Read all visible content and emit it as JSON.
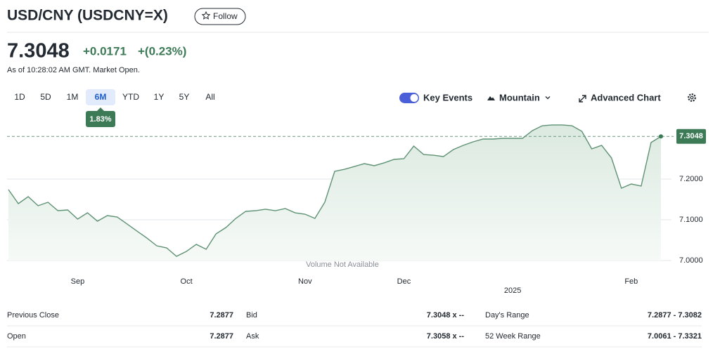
{
  "header": {
    "title": "USD/CNY (USDCNY=X)",
    "follow": "Follow"
  },
  "quote": {
    "price": "7.3048",
    "change": "+0.0171",
    "change_pct": "+(0.23%)",
    "as_of": "As of 10:28:02 AM GMT. Market Open."
  },
  "ranges": [
    {
      "label": "1D",
      "selected": false
    },
    {
      "label": "5D",
      "selected": false
    },
    {
      "label": "1M",
      "selected": false
    },
    {
      "label": "6M",
      "selected": true
    },
    {
      "label": "YTD",
      "selected": false
    },
    {
      "label": "1Y",
      "selected": false
    },
    {
      "label": "5Y",
      "selected": false
    },
    {
      "label": "All",
      "selected": false
    }
  ],
  "range_change": "1.83%",
  "controls": {
    "key_events": "Key Events",
    "mountain": "Mountain",
    "advanced": "Advanced Chart"
  },
  "chart_data": {
    "type": "area",
    "color": "#5f9274",
    "note": "Volume Not Available",
    "categories": [
      null,
      null,
      null,
      null,
      null,
      null,
      null,
      "Sep",
      null,
      null,
      null,
      null,
      null,
      null,
      null,
      null,
      null,
      null,
      "Oct",
      null,
      null,
      null,
      null,
      null,
      null,
      null,
      null,
      null,
      null,
      null,
      "Nov",
      null,
      null,
      null,
      null,
      null,
      null,
      null,
      null,
      null,
      "Dec",
      null,
      null,
      null,
      null,
      null,
      null,
      null,
      null,
      null,
      null,
      "2025",
      null,
      null,
      null,
      null,
      null,
      null,
      null,
      null,
      null,
      null,
      null,
      "Feb",
      null,
      null,
      null
    ],
    "values": [
      7.1741,
      7.1397,
      7.1569,
      7.1345,
      7.1431,
      7.1224,
      7.1241,
      7.1017,
      7.1172,
      7.0966,
      7.1103,
      7.1069,
      7.0897,
      7.0724,
      7.0552,
      7.0362,
      7.031,
      7.0103,
      7.0224,
      7.0397,
      7.0276,
      7.0655,
      7.081,
      7.1034,
      7.1207,
      7.1224,
      7.1259,
      7.1224,
      7.1276,
      7.1172,
      7.1138,
      7.1034,
      7.1431,
      7.219,
      7.2241,
      7.231,
      7.2379,
      7.2328,
      7.2397,
      7.2483,
      7.25,
      7.281,
      7.2603,
      7.2586,
      7.2552,
      7.2724,
      7.2828,
      7.2914,
      7.2983,
      7.2983,
      7.3,
      7.3,
      7.3,
      7.319,
      7.331,
      7.3328,
      7.3328,
      7.331,
      7.3172,
      7.2741,
      7.2828,
      7.2517,
      7.1776,
      7.1879,
      7.1828,
      7.2897,
      7.3048
    ],
    "ylim": [
      7.0,
      7.33
    ],
    "yticks": [
      {
        "value": 7.2,
        "label": "7.2000"
      },
      {
        "value": 7.1,
        "label": "7.1000"
      },
      {
        "value": 7.0,
        "label": "7.0000"
      }
    ],
    "grid": true
  },
  "stats": [
    [
      [
        "Previous Close",
        "7.2877"
      ],
      [
        "Bid",
        "7.3048 x --"
      ],
      [
        "Day's Range",
        "7.2877 - 7.3082"
      ]
    ],
    [
      [
        "Open",
        "7.2877"
      ],
      [
        "Ask",
        "7.3058 x --"
      ],
      [
        "52 Week Range",
        "7.0061 - 7.3321"
      ]
    ]
  ]
}
